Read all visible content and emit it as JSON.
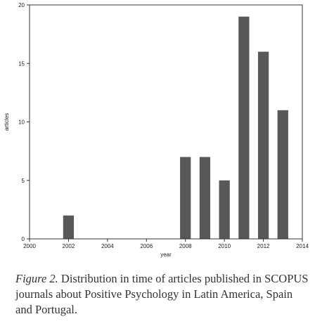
{
  "chart_data": {
    "type": "bar",
    "x": [
      2002,
      2008,
      2009,
      2010,
      2011,
      2012,
      2013
    ],
    "values": [
      2,
      7,
      7,
      5,
      19,
      16,
      11
    ],
    "xlabel": "year",
    "ylabel": "articles",
    "xlim": [
      2000,
      2014
    ],
    "ylim": [
      0,
      20
    ],
    "xticks": [
      2000,
      2002,
      2004,
      2006,
      2008,
      2010,
      2012,
      2014
    ],
    "yticks": [
      0,
      5,
      10,
      15,
      20
    ],
    "grid": false,
    "bar_color": "#585858"
  },
  "caption": {
    "label": "Figure 2.",
    "text": "Distribution in time of articles published in SCOPUS journals about Positive Psychology in Latin America, Spain and Portugal."
  }
}
